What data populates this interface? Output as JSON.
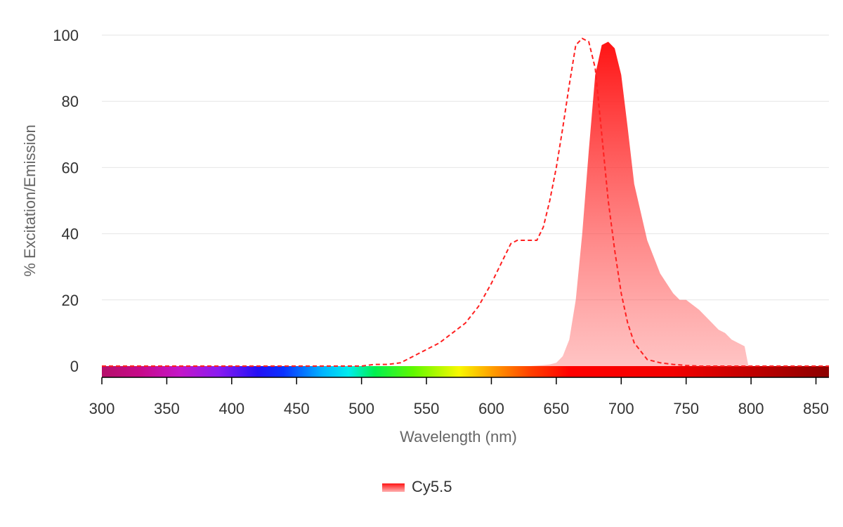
{
  "chart_data": {
    "type": "area",
    "xlabel": "Wavelength (nm)",
    "ylabel": "% Excitation/Emission",
    "xlim": [
      300,
      860
    ],
    "ylim": [
      0,
      100
    ],
    "x_ticks": [
      300,
      350,
      400,
      450,
      500,
      550,
      600,
      650,
      700,
      750,
      800,
      850
    ],
    "y_ticks": [
      0,
      20,
      40,
      60,
      80,
      100
    ],
    "grid": "horizontal",
    "legend_position": "bottom-center",
    "spectrum_bar": true,
    "series": [
      {
        "name": "Cy5.5",
        "kind": "excitation",
        "style": "dashed-line",
        "color": "#ff2020",
        "x": [
          300,
          480,
          500,
          510,
          520,
          530,
          540,
          550,
          560,
          570,
          580,
          590,
          600,
          610,
          615,
          620,
          630,
          635,
          640,
          645,
          650,
          655,
          660,
          665,
          670,
          675,
          680,
          685,
          690,
          695,
          700,
          705,
          710,
          720,
          730,
          740,
          750,
          760,
          800,
          860
        ],
        "y": [
          0,
          0,
          0,
          0.5,
          0.5,
          1,
          3,
          5,
          7,
          10,
          13,
          18,
          25,
          33,
          37,
          38,
          38,
          38,
          42,
          50,
          60,
          72,
          85,
          97,
          99,
          98,
          90,
          70,
          50,
          35,
          22,
          13,
          7,
          2,
          1,
          0.5,
          0.2,
          0,
          0,
          0
        ]
      },
      {
        "name": "Cy5.5",
        "kind": "emission",
        "style": "filled-area",
        "color": "#ff2020",
        "x": [
          300,
          630,
          640,
          645,
          650,
          655,
          660,
          665,
          670,
          675,
          680,
          685,
          690,
          695,
          700,
          705,
          710,
          720,
          730,
          740,
          745,
          750,
          760,
          770,
          775,
          780,
          785,
          790,
          795,
          798,
          860
        ],
        "y": [
          0,
          0,
          0.3,
          0.5,
          1,
          3,
          8,
          20,
          40,
          65,
          88,
          97,
          98,
          96,
          88,
          72,
          55,
          38,
          28,
          22,
          20,
          20,
          17,
          13,
          11,
          10,
          8,
          7,
          6,
          0,
          0
        ]
      }
    ]
  },
  "legend": {
    "label": "Cy5.5"
  },
  "colors": {
    "series": "#ff2020",
    "grid": "#e6e6e6",
    "axis": "#000000"
  }
}
